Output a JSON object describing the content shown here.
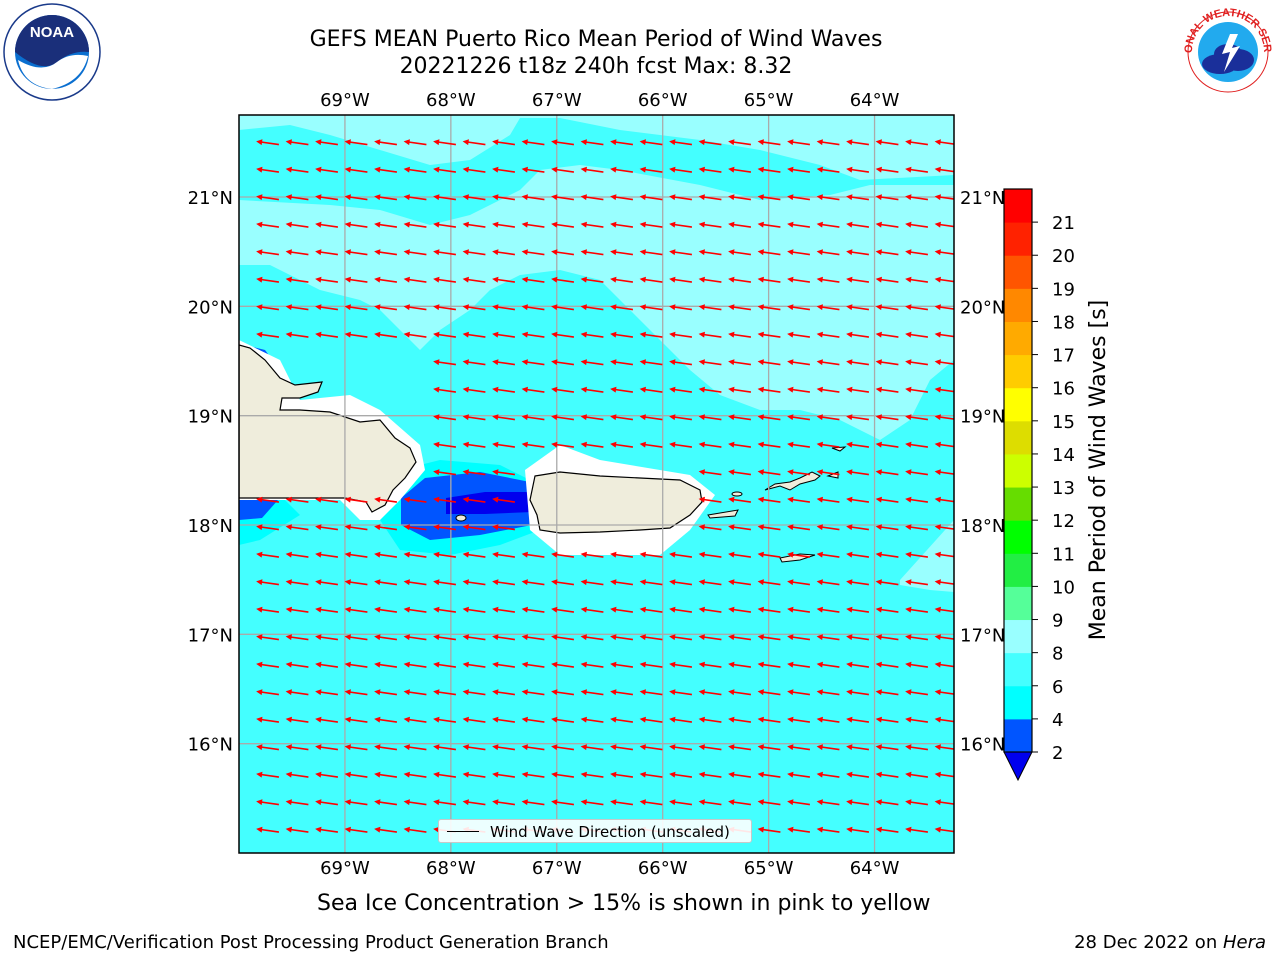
{
  "title": {
    "line1": "GEFS MEAN Puerto Rico Mean Period of Wind Waves",
    "line2": "20221226 t18z 240h fcst   Max: 8.32"
  },
  "logos": {
    "left": "noaa-logo",
    "right": "nws-logo"
  },
  "map": {
    "lon_range": [
      -70.0,
      -63.25
    ],
    "lat_range": [
      15.0,
      21.75
    ],
    "lon_ticks": [
      "69°W",
      "68°W",
      "67°W",
      "66°W",
      "65°W",
      "64°W"
    ],
    "lat_ticks": [
      "16°N",
      "17°N",
      "18°N",
      "19°N",
      "20°N",
      "21°N"
    ],
    "grid": true,
    "land_color": "#efeddc",
    "vector_color": "#ff0000",
    "vector_direction": "toward west-southwest",
    "legend": {
      "label": "Wind Wave Direction (unscaled)",
      "placement": "bottom-center"
    }
  },
  "colorbar": {
    "label": "Mean Period of Wind Waves [s]",
    "ticks": [
      "2",
      "4",
      "6",
      "8",
      "9",
      "10",
      "11",
      "12",
      "13",
      "14",
      "15",
      "16",
      "17",
      "18",
      "19",
      "20",
      "21"
    ],
    "bins": [
      {
        "from": 2,
        "to": 4,
        "color": "#0055ff"
      },
      {
        "from": 4,
        "to": 6,
        "color": "#00ffff"
      },
      {
        "from": 6,
        "to": 8,
        "color": "#44ffff"
      },
      {
        "from": 8,
        "to": 9,
        "color": "#99ffff"
      },
      {
        "from": 9,
        "to": 10,
        "color": "#55ff99"
      },
      {
        "from": 10,
        "to": 11,
        "color": "#22ee44"
      },
      {
        "from": 11,
        "to": 12,
        "color": "#00ff00"
      },
      {
        "from": 12,
        "to": 13,
        "color": "#66dd00"
      },
      {
        "from": 13,
        "to": 14,
        "color": "#ccff00"
      },
      {
        "from": 14,
        "to": 15,
        "color": "#dddd00"
      },
      {
        "from": 15,
        "to": 16,
        "color": "#ffff00"
      },
      {
        "from": 16,
        "to": 17,
        "color": "#ffcc00"
      },
      {
        "from": 17,
        "to": 18,
        "color": "#ffaa00"
      },
      {
        "from": 18,
        "to": 19,
        "color": "#ff8800"
      },
      {
        "from": 19,
        "to": 20,
        "color": "#ff5500"
      },
      {
        "from": 20,
        "to": 21,
        "color": "#ff2200"
      },
      {
        "from": 21,
        "to": 22,
        "color": "#ff0000"
      }
    ],
    "under_color": "#0000ee"
  },
  "captions": {
    "ice_note": "Sea Ice Concentration > 15% is shown in pink to yellow",
    "footer_left": "NCEP/EMC/Verification Post Processing Product Generation Branch",
    "footer_right_prefix": "28 Dec 2022 on ",
    "footer_right_host": "Hera"
  }
}
